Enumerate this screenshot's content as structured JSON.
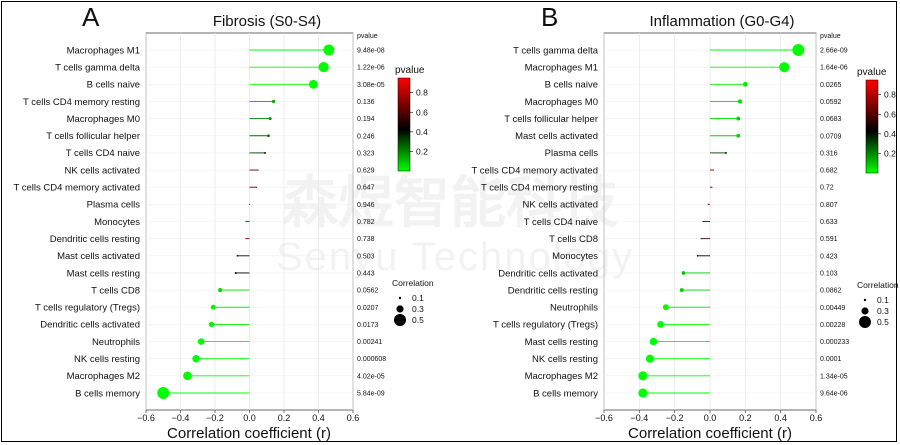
{
  "panels": [
    {
      "letter": "A",
      "pvalue_header": "pvalue",
      "chart_data": {
        "type": "lollipop",
        "title": "Fibrosis (S0-S4)",
        "xlabel": "Correlation coefficient (r)",
        "xlim": [
          -0.6,
          0.6
        ],
        "xticks": [
          -0.6,
          -0.4,
          -0.2,
          0.0,
          0.2,
          0.4,
          0.6
        ],
        "xtick_labels": [
          "−0.6",
          "−0.4",
          "−0.2",
          "0.0",
          "0.2",
          "0.4",
          "0.6"
        ],
        "grid": true,
        "categories": [
          "Macrophages M1",
          "T cells gamma delta",
          "B cells naive",
          "T cells CD4 memory resting",
          "Macrophages M0",
          "T cells follicular helper",
          "T cells CD4 naive",
          "NK cells activated",
          "T cells CD4 memory activated",
          "Plasma cells",
          "Monocytes",
          "Dendritic cells resting",
          "Mast cells activated",
          "Mast cells resting",
          "T cells CD8",
          "T cells regulatory (Tregs)",
          "Dendritic cells activated",
          "Neutrophils",
          "NK cells resting",
          "Macrophages M2",
          "B cells memory"
        ],
        "r": [
          0.46,
          0.43,
          0.37,
          0.14,
          0.12,
          0.11,
          0.09,
          0.05,
          0.04,
          0.0,
          -0.02,
          -0.02,
          -0.07,
          -0.08,
          -0.17,
          -0.21,
          -0.22,
          -0.28,
          -0.31,
          -0.36,
          -0.5
        ],
        "pvalues": [
          "9.48e-08",
          "1.22e-06",
          "3.08e-05",
          "0.136",
          "0.194",
          "0.246",
          "0.323",
          "0.629",
          "0.647",
          "0.946",
          "0.782",
          "0.738",
          "0.503",
          "0.443",
          "0.0562",
          "0.0207",
          "0.0173",
          "0.00241",
          "0.000608",
          "4.02e-05",
          "5.84e-09"
        ],
        "pvalue_numeric": [
          9.48e-08,
          1.22e-06,
          3.08e-05,
          0.136,
          0.194,
          0.246,
          0.323,
          0.629,
          0.647,
          0.946,
          0.782,
          0.738,
          0.503,
          0.443,
          0.0562,
          0.0207,
          0.0173,
          0.00241,
          0.000608,
          4.02e-05,
          5.84e-09
        ]
      }
    },
    {
      "letter": "B",
      "pvalue_header": "pvalue",
      "chart_data": {
        "type": "lollipop",
        "title": "Inflammation (G0-G4)",
        "xlabel": "Correlation coefficient (r)",
        "xlim": [
          -0.6,
          0.6
        ],
        "xticks": [
          -0.6,
          -0.4,
          -0.2,
          0.0,
          0.2,
          0.4,
          0.6
        ],
        "xtick_labels": [
          "−0.6",
          "−0.4",
          "−0.2",
          "0.0",
          "0.2",
          "0.4",
          "0.6"
        ],
        "grid": true,
        "categories": [
          "T cells gamma delta",
          "Macrophages M1",
          "B cells naive",
          "Macrophages M0",
          "T cells follicular helper",
          "Mast cells activated",
          "Plasma cells",
          "T cells CD4 memory activated",
          "T cells CD4 memory resting",
          "NK cells activated",
          "T cells CD4 naive",
          "T cells CD8",
          "Monocytes",
          "Dendritic cells activated",
          "Dendritic cells resting",
          "Neutrophils",
          "T cells regulatory (Tregs)",
          "Mast cells resting",
          "NK cells resting",
          "Macrophages M2",
          "B cells memory"
        ],
        "r": [
          0.5,
          0.42,
          0.2,
          0.17,
          0.16,
          0.16,
          0.09,
          0.02,
          0.01,
          -0.01,
          -0.04,
          -0.05,
          -0.07,
          -0.15,
          -0.16,
          -0.25,
          -0.28,
          -0.32,
          -0.34,
          -0.38,
          -0.38
        ],
        "pvalues": [
          "2.66e-09",
          "1.64e-06",
          "0.0265",
          "0.0592",
          "0.0683",
          "0.0709",
          "0.316",
          "0.682",
          "0.72",
          "0.807",
          "0.633",
          "0.591",
          "0.423",
          "0.103",
          "0.0862",
          "0.00449",
          "0.00228",
          "0.000233",
          "0.0001",
          "1.34e-05",
          "9.64e-06"
        ],
        "pvalue_numeric": [
          2.66e-09,
          1.64e-06,
          0.0265,
          0.0592,
          0.0683,
          0.0709,
          0.316,
          0.682,
          0.72,
          0.807,
          0.633,
          0.591,
          0.423,
          0.103,
          0.0862,
          0.00449,
          0.00228,
          0.000233,
          0.0001,
          1.34e-05,
          9.64e-06
        ]
      }
    }
  ],
  "colorbar": {
    "title": "pvalue",
    "ticks": [
      0.2,
      0.4,
      0.6,
      0.8
    ],
    "tick_labels": [
      "0.2",
      "0.4",
      "0.6",
      "0.8"
    ],
    "range": [
      0.0,
      0.95
    ],
    "colors": [
      "#00ff00",
      "#000000",
      "#ff0000"
    ]
  },
  "size_legend": {
    "title": "Correlation",
    "values": [
      0.1,
      0.3,
      0.5
    ],
    "labels": [
      "0.1",
      "0.3",
      "0.5"
    ]
  },
  "watermark": {
    "line1": "森煜智能科技",
    "line2": "Senyu Technology"
  }
}
